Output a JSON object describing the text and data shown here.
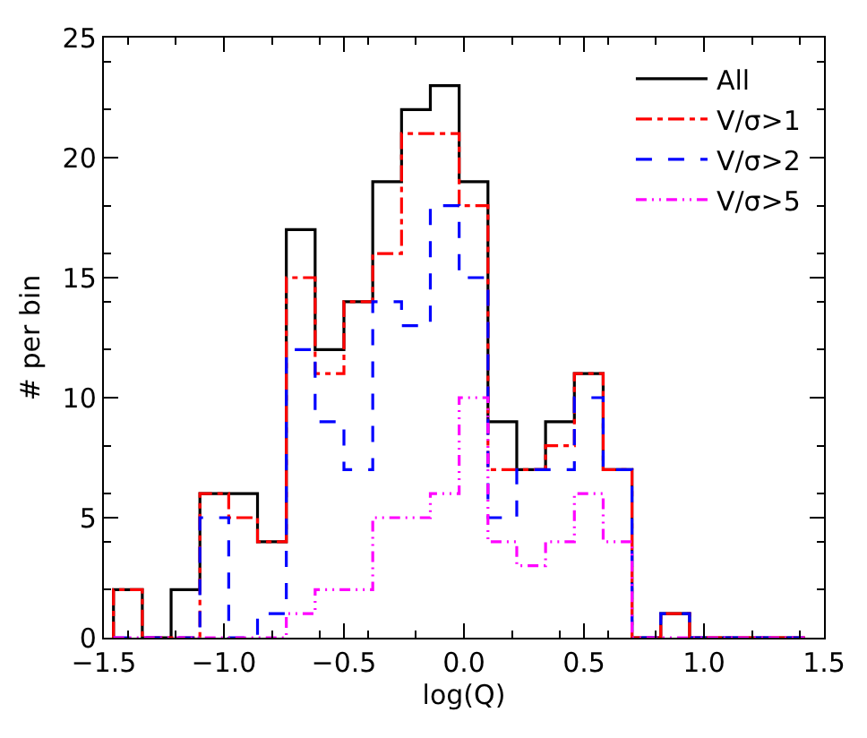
{
  "chart_data": {
    "type": "histogram",
    "xlabel": "log(Q)",
    "ylabel": "# per bin",
    "bins": [
      -1.46,
      -1.34,
      -1.22,
      -1.1,
      -0.98,
      -0.86,
      -0.74,
      -0.62,
      -0.5,
      -0.38,
      -0.26,
      -0.14,
      -0.02,
      0.1,
      0.22,
      0.34,
      0.46,
      0.58,
      0.7,
      0.82,
      0.94,
      1.06,
      1.18,
      1.3,
      1.42
    ],
    "series": [
      {
        "name": "All",
        "color": "#000000",
        "line_style": "solid",
        "values": [
          2,
          0,
          2,
          6,
          6,
          4,
          17,
          12,
          14,
          19,
          22,
          23,
          19,
          9,
          7,
          9,
          11,
          7,
          0,
          1,
          0,
          0,
          0,
          0
        ]
      },
      {
        "name": "V/σ>1",
        "color": "#ff0000",
        "line_style": "dashdot",
        "values": [
          2,
          0,
          0,
          6,
          5,
          4,
          15,
          11,
          14,
          16,
          21,
          21,
          18,
          7,
          7,
          8,
          11,
          7,
          0,
          1,
          0,
          0,
          0,
          0
        ]
      },
      {
        "name": "V/σ>2",
        "color": "#0000ff",
        "line_style": "dashed",
        "values": [
          0,
          0,
          0,
          5,
          0,
          1,
          12,
          9,
          7,
          14,
          13,
          18,
          15,
          5,
          7,
          7,
          10,
          7,
          0,
          1,
          0,
          0,
          0,
          0
        ]
      },
      {
        "name": "V/σ>5",
        "color": "#ff00ff",
        "line_style": "dashdotdot",
        "values": [
          0,
          0,
          0,
          0,
          0,
          0,
          1,
          2,
          2,
          5,
          5,
          6,
          10,
          4,
          3,
          4,
          6,
          4,
          0,
          0,
          0,
          0,
          0,
          0
        ]
      }
    ],
    "xlim": [
      -1.5,
      1.5
    ],
    "xticks": [
      {
        "value": -1.5,
        "label": "−1.5"
      },
      {
        "value": -1.0,
        "label": "−1.0"
      },
      {
        "value": -0.5,
        "label": "−0.5"
      },
      {
        "value": 0.0,
        "label": "0.0"
      },
      {
        "value": 0.5,
        "label": "0.5"
      },
      {
        "value": 1.0,
        "label": "1.0"
      },
      {
        "value": 1.5,
        "label": "1.5"
      }
    ],
    "ylim": [
      0,
      25
    ],
    "yticks": [
      0,
      5,
      10,
      15,
      20,
      25
    ],
    "legend": "top right"
  }
}
